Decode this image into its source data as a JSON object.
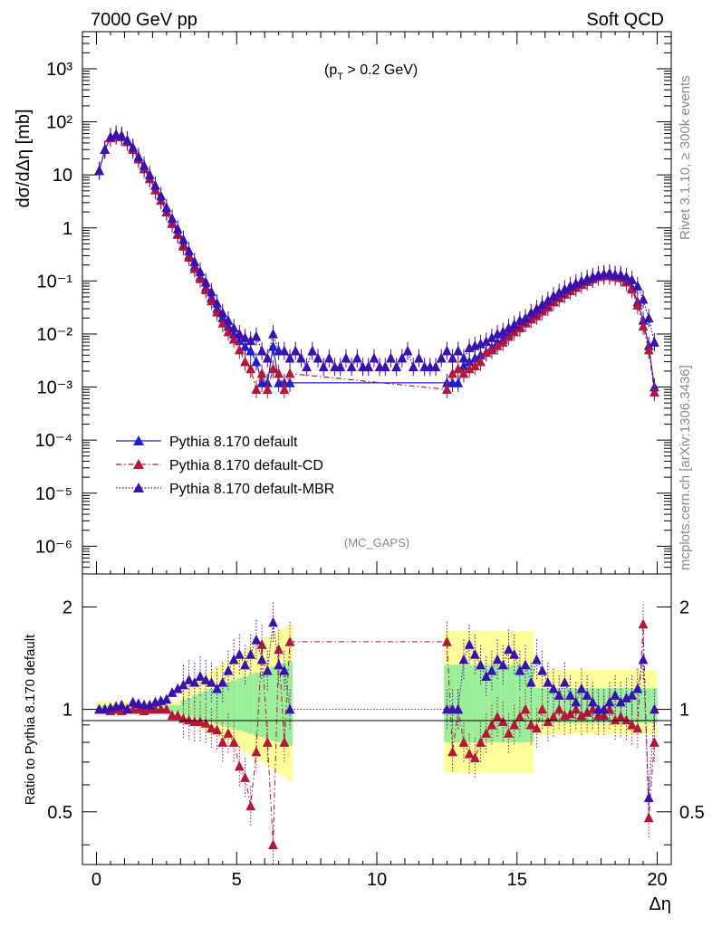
{
  "header": {
    "left": "7000 GeV pp",
    "right": "Soft QCD",
    "cut_base": "(p",
    "cut_sub": "T",
    "cut_rest": " > 0.2 GeV)",
    "analysis": "(MC_GAPS)"
  },
  "side": {
    "rivet": "Rivet 3.1.10, ≥ 300k events",
    "mcplots": "mcplots.cern.ch [arXiv:1306.3436]"
  },
  "labels": {
    "ylabel_main": "dσ/dΔη [mb]",
    "ylabel_ratio": "Ratio to Pythia 8.170 default",
    "xlabel": "Δη"
  },
  "colors": {
    "default": "#1f1fcf",
    "cd": "#b5163a",
    "mbr": "#3a10b0",
    "band_yellow": "#ffff99",
    "band_green": "#99ee99"
  },
  "chart_data": [
    {
      "type": "line",
      "scale": "log",
      "xlabel": "Δη",
      "ylabel": "dσ/dΔη [mb]",
      "xlim": [
        -0.5,
        20.5
      ],
      "ylim": [
        3e-07,
        5000
      ],
      "y_ticks": [
        "10⁻⁶",
        "10⁻⁵",
        "10⁻⁴",
        "10⁻³",
        "10⁻²",
        "10⁻¹",
        "1",
        "10",
        "10²",
        "10³"
      ],
      "legend_position": "lower-left",
      "series": [
        {
          "name": "Pythia 8.170 default",
          "style": "solid",
          "x": [
            0.1,
            0.3,
            0.5,
            0.7,
            0.9,
            1.1,
            1.3,
            1.5,
            1.7,
            1.9,
            2.1,
            2.3,
            2.5,
            2.7,
            2.9,
            3.1,
            3.3,
            3.5,
            3.7,
            3.9,
            4.1,
            4.3,
            4.5,
            4.7,
            4.9,
            5.1,
            5.3,
            5.5,
            5.7,
            5.9,
            6.1,
            6.3,
            6.5,
            6.7,
            6.9,
            12.5,
            12.7,
            12.9,
            13.1,
            13.3,
            13.5,
            13.7,
            13.9,
            14.1,
            14.3,
            14.5,
            14.7,
            14.9,
            15.1,
            15.3,
            15.5,
            15.7,
            15.9,
            16.1,
            16.3,
            16.5,
            16.7,
            16.9,
            17.1,
            17.3,
            17.5,
            17.7,
            17.9,
            18.1,
            18.3,
            18.5,
            18.7,
            18.9,
            19.1,
            19.3,
            19.5,
            19.7,
            19.9
          ],
          "y": [
            12,
            30,
            50,
            55,
            52,
            42,
            30,
            20,
            13,
            8.5,
            5.2,
            3.3,
            2.0,
            1.25,
            0.78,
            0.48,
            0.3,
            0.19,
            0.12,
            0.075,
            0.048,
            0.03,
            0.02,
            0.014,
            0.01,
            0.0075,
            0.0058,
            0.0048,
            0.003,
            0.0012,
            0.0012,
            0.0058,
            0.0012,
            0.0012,
            0.0012,
            0.0012,
            0.0012,
            0.0012,
            0.0025,
            0.003,
            0.0035,
            0.004,
            0.0045,
            0.0055,
            0.007,
            0.008,
            0.01,
            0.013,
            0.014,
            0.017,
            0.02,
            0.025,
            0.03,
            0.035,
            0.042,
            0.05,
            0.058,
            0.067,
            0.077,
            0.088,
            0.1,
            0.11,
            0.125,
            0.13,
            0.13,
            0.13,
            0.12,
            0.1,
            0.075,
            0.04,
            0.018,
            0.006,
            0.001
          ]
        },
        {
          "name": "Pythia 8.170 default-CD",
          "style": "dashdot",
          "x": [
            0.1,
            0.3,
            0.5,
            0.7,
            0.9,
            1.1,
            1.3,
            1.5,
            1.7,
            1.9,
            2.1,
            2.3,
            2.5,
            2.7,
            2.9,
            3.1,
            3.3,
            3.5,
            3.7,
            3.9,
            4.1,
            4.3,
            4.5,
            4.7,
            4.9,
            5.1,
            5.3,
            5.5,
            5.7,
            5.9,
            6.1,
            6.3,
            6.5,
            6.7,
            6.9,
            12.5,
            12.7,
            12.9,
            13.1,
            13.3,
            13.5,
            13.7,
            13.9,
            14.1,
            14.3,
            14.5,
            14.7,
            14.9,
            15.1,
            15.3,
            15.5,
            15.7,
            15.9,
            16.1,
            16.3,
            16.5,
            16.7,
            16.9,
            17.1,
            17.3,
            17.5,
            17.7,
            17.9,
            18.1,
            18.3,
            18.5,
            18.7,
            18.9,
            19.1,
            19.3,
            19.5,
            19.7,
            19.9
          ],
          "y": [
            12,
            30,
            50,
            55,
            52,
            42,
            30,
            20,
            13,
            8.5,
            5.2,
            3.3,
            2.0,
            1.2,
            0.75,
            0.45,
            0.28,
            0.17,
            0.11,
            0.068,
            0.042,
            0.026,
            0.016,
            0.011,
            0.008,
            0.005,
            0.003,
            0.0022,
            0.0009,
            0.0018,
            0.0009,
            0.0022,
            0.0018,
            0.0009,
            0.0018,
            0.0009,
            0.0018,
            0.0022,
            0.0018,
            0.0022,
            0.0025,
            0.003,
            0.0045,
            0.005,
            0.006,
            0.007,
            0.009,
            0.011,
            0.013,
            0.016,
            0.019,
            0.022,
            0.027,
            0.032,
            0.04,
            0.048,
            0.056,
            0.065,
            0.075,
            0.085,
            0.097,
            0.11,
            0.12,
            0.125,
            0.125,
            0.12,
            0.115,
            0.095,
            0.07,
            0.035,
            0.014,
            0.005,
            0.0008
          ]
        },
        {
          "name": "Pythia 8.170 default-MBR",
          "style": "dotted",
          "x": [
            0.1,
            0.3,
            0.5,
            0.7,
            0.9,
            1.1,
            1.3,
            1.5,
            1.7,
            1.9,
            2.1,
            2.3,
            2.5,
            2.7,
            2.9,
            3.1,
            3.3,
            3.5,
            3.7,
            3.9,
            4.1,
            4.3,
            4.5,
            4.7,
            4.9,
            5.1,
            5.3,
            5.5,
            5.7,
            5.9,
            6.1,
            6.3,
            6.5,
            6.7,
            6.9,
            7.1,
            7.3,
            7.5,
            7.7,
            7.9,
            8.1,
            8.3,
            8.5,
            8.7,
            8.9,
            9.1,
            9.3,
            9.5,
            9.7,
            9.9,
            10.1,
            10.3,
            10.5,
            10.7,
            10.9,
            11.1,
            11.3,
            11.5,
            11.7,
            11.9,
            12.1,
            12.3,
            12.5,
            12.7,
            12.9,
            13.1,
            13.3,
            13.5,
            13.7,
            13.9,
            14.1,
            14.3,
            14.5,
            14.7,
            14.9,
            15.1,
            15.3,
            15.5,
            15.7,
            15.9,
            16.1,
            16.3,
            16.5,
            16.7,
            16.9,
            17.1,
            17.3,
            17.5,
            17.7,
            17.9,
            18.1,
            18.3,
            18.5,
            18.7,
            18.9,
            19.1,
            19.3,
            19.5,
            19.7,
            19.9
          ],
          "y": [
            12,
            30,
            52,
            58,
            55,
            45,
            33,
            22,
            15,
            10,
            6.3,
            4.0,
            2.4,
            1.5,
            0.95,
            0.6,
            0.37,
            0.23,
            0.15,
            0.095,
            0.062,
            0.038,
            0.025,
            0.018,
            0.013,
            0.01,
            0.0085,
            0.0075,
            0.009,
            0.0048,
            0.0035,
            0.01,
            0.0048,
            0.0048,
            0.0035,
            0.0048,
            0.0035,
            0.0024,
            0.0048,
            0.0035,
            0.0024,
            0.0035,
            0.0024,
            0.0024,
            0.0035,
            0.0024,
            0.0035,
            0.0024,
            0.0024,
            0.0035,
            0.0024,
            0.0024,
            0.0035,
            0.0024,
            0.0035,
            0.0048,
            0.0024,
            0.0035,
            0.0024,
            0.0024,
            0.0024,
            0.0035,
            0.0048,
            0.0035,
            0.0048,
            0.0035,
            0.0055,
            0.006,
            0.0065,
            0.0072,
            0.0085,
            0.01,
            0.011,
            0.013,
            0.015,
            0.018,
            0.02,
            0.025,
            0.03,
            0.036,
            0.043,
            0.052,
            0.06,
            0.07,
            0.08,
            0.09,
            0.1,
            0.11,
            0.12,
            0.13,
            0.135,
            0.14,
            0.13,
            0.13,
            0.12,
            0.105,
            0.08,
            0.045,
            0.02,
            0.007
          ]
        }
      ]
    },
    {
      "type": "line",
      "scale": "log",
      "ylabel": "Ratio to Pythia 8.170 default",
      "xlabel": "Δη",
      "xlim": [
        -0.5,
        20.5
      ],
      "ylim": [
        0.35,
        2.5
      ],
      "x_ticks": [
        0,
        5,
        10,
        15,
        20
      ],
      "y_ticks": [
        0.5,
        1,
        2
      ],
      "series": [
        {
          "name": "Pythia 8.170 default-CD",
          "x": [
            0.1,
            0.3,
            0.5,
            0.7,
            0.9,
            1.1,
            1.3,
            1.5,
            1.7,
            1.9,
            2.1,
            2.3,
            2.5,
            2.7,
            2.9,
            3.1,
            3.3,
            3.5,
            3.7,
            3.9,
            4.1,
            4.3,
            4.5,
            4.7,
            4.9,
            5.1,
            5.3,
            5.5,
            5.7,
            5.9,
            6.1,
            6.3,
            6.5,
            6.7,
            6.9,
            12.5,
            12.7,
            12.9,
            13.1,
            13.3,
            13.5,
            13.7,
            13.9,
            14.1,
            14.3,
            14.5,
            14.7,
            14.9,
            15.1,
            15.3,
            15.5,
            15.7,
            15.9,
            16.1,
            16.3,
            16.5,
            16.7,
            16.9,
            17.1,
            17.3,
            17.5,
            17.7,
            17.9,
            18.1,
            18.3,
            18.5,
            18.7,
            18.9,
            19.1,
            19.3,
            19.5,
            19.7,
            19.9
          ],
          "y": [
            1.0,
            1.0,
            0.99,
            1.0,
            0.99,
            1.0,
            1.0,
            1.0,
            0.99,
            1.0,
            1.0,
            1.0,
            1.0,
            0.96,
            0.96,
            0.94,
            0.93,
            0.92,
            0.92,
            0.91,
            0.88,
            0.87,
            0.8,
            0.85,
            0.8,
            0.68,
            0.63,
            0.52,
            0.75,
            1.55,
            0.8,
            0.4,
            1.5,
            0.8,
            1.58,
            1.58,
            0.75,
            1.0,
            0.8,
            0.74,
            0.72,
            0.8,
            0.85,
            0.9,
            0.95,
            0.92,
            0.85,
            0.9,
            0.95,
            1.0,
            0.9,
            0.88,
            1.0,
            0.92,
            0.95,
            1.0,
            0.96,
            0.97,
            1.0,
            0.96,
            0.98,
            1.0,
            0.96,
            0.96,
            1.0,
            0.93,
            0.95,
            0.93,
            0.9,
            0.88,
            1.78,
            0.48,
            0.8
          ]
        },
        {
          "name": "Pythia 8.170 default-MBR",
          "x": [
            0.1,
            0.3,
            0.5,
            0.7,
            0.9,
            1.1,
            1.3,
            1.5,
            1.7,
            1.9,
            2.1,
            2.3,
            2.5,
            2.7,
            2.9,
            3.1,
            3.3,
            3.5,
            3.7,
            3.9,
            4.1,
            4.3,
            4.5,
            4.7,
            4.9,
            5.1,
            5.3,
            5.5,
            5.7,
            5.9,
            6.1,
            6.3,
            6.5,
            6.7,
            6.9,
            12.5,
            12.7,
            12.9,
            13.1,
            13.3,
            13.5,
            13.7,
            13.9,
            14.1,
            14.3,
            14.5,
            14.7,
            14.9,
            15.1,
            15.3,
            15.5,
            15.7,
            15.9,
            16.1,
            16.3,
            16.5,
            16.7,
            16.9,
            17.1,
            17.3,
            17.5,
            17.7,
            17.9,
            18.1,
            18.3,
            18.5,
            18.7,
            18.9,
            19.1,
            19.3,
            19.5,
            19.7,
            19.9
          ],
          "y": [
            1.0,
            1.0,
            1.01,
            1.02,
            1.03,
            1.0,
            1.05,
            1.04,
            1.03,
            1.03,
            1.05,
            1.06,
            1.07,
            1.12,
            1.15,
            1.18,
            1.22,
            1.2,
            1.25,
            1.22,
            1.2,
            1.15,
            1.2,
            1.3,
            1.4,
            1.45,
            1.35,
            1.45,
            1.6,
            1.4,
            1.3,
            1.8,
            1.35,
            1.3,
            1.0,
            1.0,
            1.0,
            1.0,
            1.4,
            1.55,
            1.45,
            1.35,
            1.25,
            1.3,
            1.4,
            1.35,
            1.5,
            1.45,
            1.3,
            1.35,
            1.2,
            1.4,
            1.3,
            1.2,
            1.15,
            1.1,
            1.2,
            1.1,
            1.05,
            1.15,
            1.1,
            1.05,
            1.0,
            1.0,
            1.05,
            1.1,
            1.05,
            1.08,
            1.1,
            1.15,
            1.4,
            0.55,
            1.0
          ]
        }
      ]
    }
  ]
}
